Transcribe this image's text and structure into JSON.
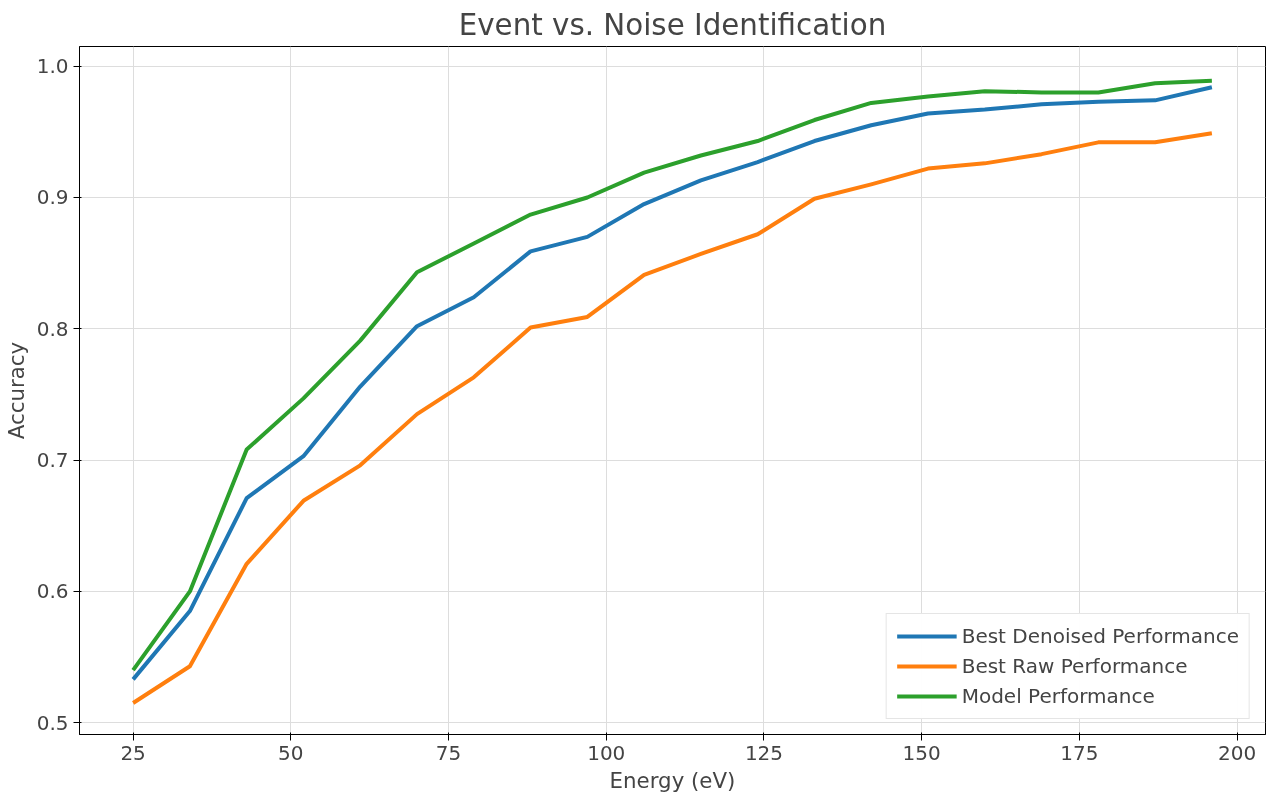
{
  "chart_data": {
    "type": "line",
    "title": "Event vs. Noise Identification",
    "xlabel": "Energy (eV)",
    "ylabel": "Accuracy",
    "x": [
      25,
      34,
      43,
      52,
      61,
      70,
      79,
      88,
      97,
      106,
      115,
      124,
      133,
      142,
      151,
      160,
      169,
      178,
      187,
      196
    ],
    "series": [
      {
        "name": "Best Denoised Performance",
        "color": "#1f77b4",
        "values": [
          0.533,
          0.585,
          0.671,
          0.703,
          0.756,
          0.802,
          0.824,
          0.859,
          0.87,
          0.895,
          0.913,
          0.927,
          0.943,
          0.955,
          0.964,
          0.967,
          0.971,
          0.973,
          0.974,
          0.984
        ]
      },
      {
        "name": "Best Raw Performance",
        "color": "#ff7f0e",
        "values": [
          0.515,
          0.543,
          0.621,
          0.669,
          0.696,
          0.735,
          0.763,
          0.801,
          0.809,
          0.841,
          0.857,
          0.872,
          0.899,
          0.91,
          0.922,
          0.926,
          0.933,
          0.942,
          0.942,
          0.949
        ]
      },
      {
        "name": "Model Performance",
        "color": "#2ca02c",
        "values": [
          0.54,
          0.6,
          0.708,
          0.747,
          0.791,
          0.843,
          0.865,
          0.887,
          0.9,
          0.919,
          0.932,
          0.943,
          0.959,
          0.972,
          0.977,
          0.981,
          0.98,
          0.98,
          0.987,
          0.989
        ]
      }
    ],
    "xlim": [
      16.5,
      204.5
    ],
    "ylim": [
      0.491,
      1.015
    ],
    "xticks": [
      25,
      50,
      75,
      100,
      125,
      150,
      175,
      200
    ],
    "yticks": [
      {
        "value": 0.5,
        "label": "0.5"
      },
      {
        "value": 0.6,
        "label": "0.6"
      },
      {
        "value": 0.7,
        "label": "0.7"
      },
      {
        "value": 0.8,
        "label": "0.8"
      },
      {
        "value": 0.9,
        "label": "0.9"
      },
      {
        "value": 1.0,
        "label": "1.0"
      }
    ],
    "grid": true,
    "legend": "bottom right",
    "marker": "none",
    "line_style": "solid"
  }
}
